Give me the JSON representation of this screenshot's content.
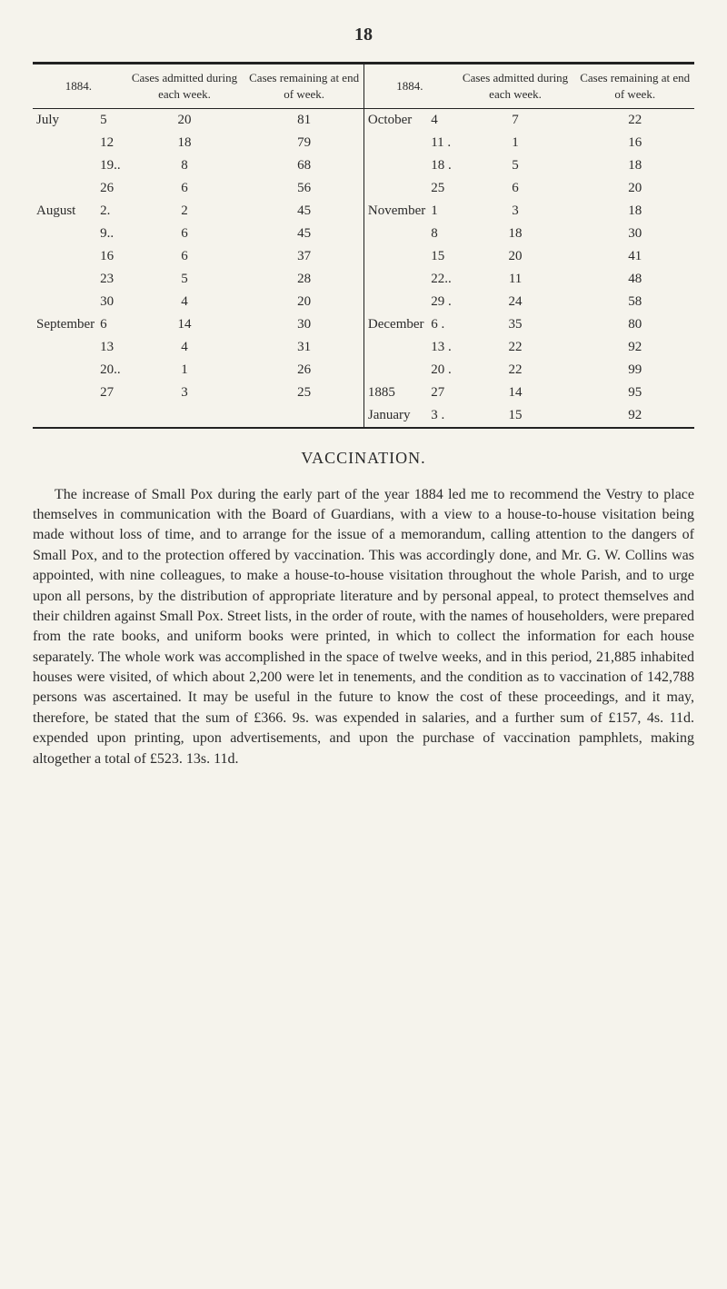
{
  "page_number": "18",
  "table": {
    "headers": {
      "period": "1884.",
      "admitted": "Cases admitted during each week.",
      "remaining": "Cases remaining at end of week."
    },
    "left_rows": [
      {
        "month": "July",
        "day": "5",
        "admitted": "20",
        "remaining": "81"
      },
      {
        "month": "",
        "day": "12",
        "admitted": "18",
        "remaining": "79"
      },
      {
        "month": "",
        "day": "19..",
        "admitted": "8",
        "remaining": "68"
      },
      {
        "month": "",
        "day": "26",
        "admitted": "6",
        "remaining": "56"
      },
      {
        "month": "August",
        "day": "2.",
        "admitted": "2",
        "remaining": "45"
      },
      {
        "month": "",
        "day": "9..",
        "admitted": "6",
        "remaining": "45"
      },
      {
        "month": "",
        "day": "16",
        "admitted": "6",
        "remaining": "37"
      },
      {
        "month": "",
        "day": "23",
        "admitted": "5",
        "remaining": "28"
      },
      {
        "month": "",
        "day": "30",
        "admitted": "4",
        "remaining": "20"
      },
      {
        "month": "September",
        "day": "6",
        "admitted": "14",
        "remaining": "30"
      },
      {
        "month": "",
        "day": "13",
        "admitted": "4",
        "remaining": "31"
      },
      {
        "month": "",
        "day": "20..",
        "admitted": "1",
        "remaining": "26"
      },
      {
        "month": "",
        "day": "27",
        "admitted": "3",
        "remaining": "25"
      }
    ],
    "right_rows": [
      {
        "month": "October",
        "day": "4",
        "admitted": "7",
        "remaining": "22"
      },
      {
        "month": "",
        "day": "11 .",
        "admitted": "1",
        "remaining": "16"
      },
      {
        "month": "",
        "day": "18 .",
        "admitted": "5",
        "remaining": "18"
      },
      {
        "month": "",
        "day": "25",
        "admitted": "6",
        "remaining": "20"
      },
      {
        "month": "November",
        "day": "1",
        "admitted": "3",
        "remaining": "18"
      },
      {
        "month": "",
        "day": "8",
        "admitted": "18",
        "remaining": "30"
      },
      {
        "month": "",
        "day": "15",
        "admitted": "20",
        "remaining": "41"
      },
      {
        "month": "",
        "day": "22..",
        "admitted": "11",
        "remaining": "48"
      },
      {
        "month": "",
        "day": "29 .",
        "admitted": "24",
        "remaining": "58"
      },
      {
        "month": "December",
        "day": "6 .",
        "admitted": "35",
        "remaining": "80"
      },
      {
        "month": "",
        "day": "13 .",
        "admitted": "22",
        "remaining": "92"
      },
      {
        "month": "",
        "day": "20 .",
        "admitted": "22",
        "remaining": "99"
      },
      {
        "month": "1885",
        "day": "27",
        "admitted": "14",
        "remaining": "95"
      },
      {
        "month": "January",
        "day": "3 .",
        "admitted": "15",
        "remaining": "92"
      }
    ]
  },
  "section_heading": "VACCINATION.",
  "body_paragraph": "The increase of Small Pox during the early part of the year 1884 led me to recommend the Vestry to place themselves in communication with the Board of Guardians, with a view to a house-to-house visitation being made without loss of time, and to arrange for the issue of a memorandum, calling attention to the dangers of Small Pox, and to the protection offered by vaccination. This was accordingly done, and Mr. G. W. Collins was appointed, with nine colleagues, to make a house-to-house visitation throughout the whole Parish, and to urge upon all persons, by the distribution of appropriate literature and by personal appeal, to protect themselves and their children against Small Pox. Street lists, in the order of route, with the names of householders, were prepared from the rate books, and uniform books were printed, in which to collect the information for each house separately. The whole work was accomplished in the space of twelve weeks, and in this period, 21,885 inhabited houses were visited, of which about 2,200 were let in tenements, and the condition as to vaccination of 142,788 persons was ascertained. It may be useful in the future to know the cost of these proceedings, and it may, therefore, be stated that the sum of £366. 9s. was expended in salaries, and a further sum of £157, 4s. 11d. expended upon printing, upon advertisements, and upon the purchase of vaccination pamphlets, making altogether a total of £523. 13s. 11d."
}
